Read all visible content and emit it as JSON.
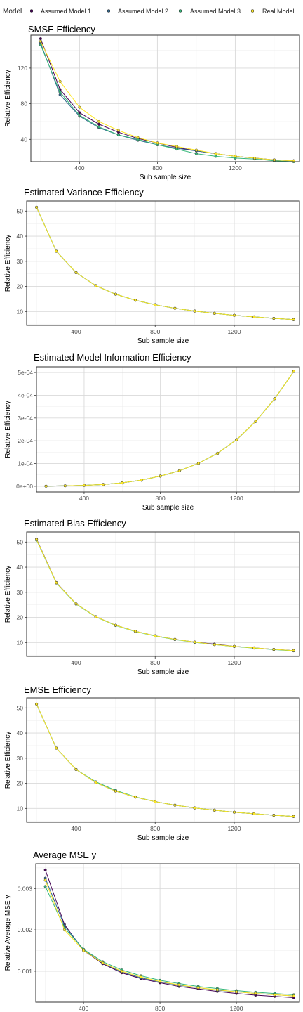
{
  "legend": {
    "title": "Model",
    "items": [
      {
        "name": "Assumed Model 1",
        "color": "#440154"
      },
      {
        "name": "Assumed Model 2",
        "color": "#31688e"
      },
      {
        "name": "Assumed Model 3",
        "color": "#35b779"
      },
      {
        "name": "Real Model",
        "color": "#fde725"
      }
    ]
  },
  "chart_data": [
    {
      "type": "line",
      "title": "SMSE Efficiency",
      "xlabel": "Sub sample size",
      "ylabel": "Relative Efficiency",
      "xlim": [
        150,
        1530
      ],
      "ylim": [
        15,
        157
      ],
      "xticks": [
        400,
        800,
        1200
      ],
      "yticks": [
        40,
        80,
        120
      ],
      "ytick_labels": [
        "40",
        "80",
        "120"
      ],
      "grid": true,
      "x": [
        200,
        300,
        400,
        500,
        600,
        700,
        800,
        900,
        1000,
        1100,
        1200,
        1300,
        1400,
        1500
      ],
      "series": [
        {
          "name": "Assumed Model 1",
          "values": [
            153,
            96,
            70,
            57,
            48,
            41,
            36,
            31,
            27,
            24,
            21,
            19,
            17,
            16
          ]
        },
        {
          "name": "Assumed Model 2",
          "values": [
            148,
            90,
            66,
            53,
            45,
            39,
            34,
            30,
            27,
            24,
            21,
            19,
            17,
            16
          ]
        },
        {
          "name": "Assumed Model 3",
          "values": [
            146,
            93,
            67,
            54,
            45,
            40,
            34,
            29,
            24,
            21,
            19,
            18,
            16,
            15
          ]
        },
        {
          "name": "Real Model",
          "values": [
            150,
            105,
            76,
            60,
            50,
            42,
            36,
            32,
            28,
            24,
            21,
            19,
            17,
            16
          ]
        }
      ]
    },
    {
      "type": "line",
      "title": "Estimated Variance Efficiency",
      "xlabel": "Sub sample size",
      "ylabel": "Relative Efficiency",
      "xlim": [
        150,
        1530
      ],
      "ylim": [
        4.5,
        54
      ],
      "xticks": [
        400,
        800,
        1200
      ],
      "yticks": [
        10,
        20,
        30,
        40,
        50
      ],
      "ytick_labels": [
        "10",
        "20",
        "30",
        "40",
        "50"
      ],
      "grid": true,
      "x": [
        200,
        300,
        400,
        500,
        600,
        700,
        800,
        900,
        1000,
        1100,
        1200,
        1300,
        1400,
        1500
      ],
      "series": [
        {
          "name": "Assumed Model 1",
          "values": [
            51.5,
            34.0,
            25.5,
            20.3,
            16.9,
            14.5,
            12.7,
            11.3,
            10.2,
            9.3,
            8.5,
            7.9,
            7.3,
            6.8
          ]
        },
        {
          "name": "Assumed Model 2",
          "values": [
            51.5,
            34.0,
            25.5,
            20.3,
            16.9,
            14.5,
            12.7,
            11.3,
            10.2,
            9.3,
            8.5,
            7.9,
            7.3,
            6.8
          ]
        },
        {
          "name": "Assumed Model 3",
          "values": [
            51.5,
            34.0,
            25.5,
            20.3,
            16.9,
            14.5,
            12.7,
            11.3,
            10.2,
            9.3,
            8.5,
            7.9,
            7.3,
            6.8
          ]
        },
        {
          "name": "Real Model",
          "values": [
            51.5,
            34.0,
            25.5,
            20.3,
            16.9,
            14.5,
            12.7,
            11.3,
            10.2,
            9.3,
            8.5,
            7.9,
            7.3,
            6.8
          ]
        }
      ]
    },
    {
      "type": "line",
      "title": "Estimated Model Information Efficiency",
      "xlabel": "Sub sample size",
      "ylabel": "Relative Efficiency",
      "xlim": [
        150,
        1530
      ],
      "ylim": [
        -2.5e-05,
        0.000525
      ],
      "xticks": [
        400,
        800,
        1200
      ],
      "yticks": [
        0,
        0.0001,
        0.0002,
        0.0003,
        0.0004,
        0.0005
      ],
      "ytick_labels": [
        "0e+00",
        "1e-04",
        "2e-04",
        "3e-04",
        "4e-04",
        "5e-04"
      ],
      "grid": true,
      "x": [
        200,
        300,
        400,
        500,
        600,
        700,
        800,
        900,
        1000,
        1100,
        1200,
        1300,
        1400,
        1500
      ],
      "series": [
        {
          "name": "Assumed Model 1",
          "values": [
            5e-07,
            2e-06,
            4e-06,
            8e-06,
            1.5e-05,
            2.7e-05,
            4.5e-05,
            6.8e-05,
            0.000101,
            0.000145,
            0.000205,
            0.000285,
            0.000385,
            0.000505
          ]
        },
        {
          "name": "Assumed Model 2",
          "values": [
            5e-07,
            2e-06,
            4e-06,
            8e-06,
            1.5e-05,
            2.7e-05,
            4.5e-05,
            6.8e-05,
            0.000101,
            0.000145,
            0.000205,
            0.000285,
            0.000385,
            0.000505
          ]
        },
        {
          "name": "Assumed Model 3",
          "values": [
            5e-07,
            2e-06,
            4e-06,
            8e-06,
            1.5e-05,
            2.7e-05,
            4.5e-05,
            6.8e-05,
            0.000101,
            0.000145,
            0.000205,
            0.000285,
            0.000385,
            0.000505
          ]
        },
        {
          "name": "Real Model",
          "values": [
            5e-07,
            2e-06,
            4e-06,
            8e-06,
            1.5e-05,
            2.7e-05,
            4.5e-05,
            6.8e-05,
            0.000101,
            0.000145,
            0.000205,
            0.000285,
            0.000385,
            0.000505
          ]
        }
      ]
    },
    {
      "type": "line",
      "title": "Estimated Bias Efficiency",
      "xlabel": "Sub sample size",
      "ylabel": "Relative Efficiency",
      "xlim": [
        150,
        1530
      ],
      "ylim": [
        4.5,
        54
      ],
      "xticks": [
        400,
        800,
        1200
      ],
      "yticks": [
        10,
        20,
        30,
        40,
        50
      ],
      "ytick_labels": [
        "10",
        "20",
        "30",
        "40",
        "50"
      ],
      "grid": true,
      "x": [
        200,
        300,
        400,
        500,
        600,
        700,
        800,
        900,
        1000,
        1100,
        1200,
        1300,
        1400,
        1500
      ],
      "series": [
        {
          "name": "Assumed Model 1",
          "values": [
            51.2,
            33.9,
            25.4,
            20.3,
            16.9,
            14.5,
            12.7,
            11.3,
            10.2,
            9.4,
            8.5,
            7.9,
            7.3,
            6.8
          ]
        },
        {
          "name": "Assumed Model 2",
          "values": [
            51.0,
            33.8,
            25.4,
            20.3,
            16.9,
            14.5,
            12.7,
            11.3,
            10.2,
            9.2,
            8.5,
            7.9,
            7.3,
            6.8
          ]
        },
        {
          "name": "Assumed Model 3",
          "values": [
            50.8,
            33.7,
            25.3,
            20.2,
            16.8,
            14.4,
            12.6,
            11.2,
            10.1,
            9.2,
            8.4,
            7.8,
            7.2,
            6.7
          ]
        },
        {
          "name": "Real Model",
          "values": [
            51.0,
            33.8,
            25.4,
            20.3,
            16.9,
            14.5,
            12.7,
            11.3,
            10.2,
            9.2,
            8.5,
            7.9,
            7.3,
            6.8
          ]
        }
      ]
    },
    {
      "type": "line",
      "title": "EMSE Efficiency",
      "xlabel": "Sub sample size",
      "ylabel": "Relative Efficiency",
      "xlim": [
        150,
        1530
      ],
      "ylim": [
        4.5,
        54
      ],
      "xticks": [
        400,
        800,
        1200
      ],
      "yticks": [
        10,
        20,
        30,
        40,
        50
      ],
      "ytick_labels": [
        "10",
        "20",
        "30",
        "40",
        "50"
      ],
      "grid": true,
      "x": [
        200,
        300,
        400,
        500,
        600,
        700,
        800,
        900,
        1000,
        1100,
        1200,
        1300,
        1400,
        1500
      ],
      "series": [
        {
          "name": "Assumed Model 1",
          "values": [
            51.5,
            34.0,
            25.5,
            20.3,
            16.9,
            14.5,
            12.7,
            11.3,
            10.2,
            9.3,
            8.5,
            7.9,
            7.3,
            6.8
          ]
        },
        {
          "name": "Assumed Model 2",
          "values": [
            51.5,
            34.0,
            25.5,
            20.3,
            16.9,
            14.5,
            12.7,
            11.3,
            10.2,
            9.3,
            8.5,
            7.9,
            7.3,
            6.8
          ]
        },
        {
          "name": "Assumed Model 3",
          "values": [
            51.5,
            34.0,
            25.5,
            20.6,
            17.2,
            14.6,
            12.7,
            11.3,
            10.2,
            9.3,
            8.5,
            7.9,
            7.3,
            6.8
          ]
        },
        {
          "name": "Real Model",
          "values": [
            51.5,
            34.0,
            25.5,
            20.3,
            16.9,
            14.5,
            12.7,
            11.3,
            10.2,
            9.3,
            8.5,
            7.9,
            7.3,
            6.8
          ]
        }
      ]
    },
    {
      "type": "line",
      "title": "Average MSE y",
      "xlabel": "Sub sample size",
      "ylabel": "Relative Average MSE y",
      "xlim": [
        150,
        1530
      ],
      "ylim": [
        0.00025,
        0.0036
      ],
      "xticks": [
        400,
        800,
        1200
      ],
      "yticks": [
        0.001,
        0.002,
        0.003
      ],
      "ytick_labels": [
        "0.001",
        "0.002",
        "0.003"
      ],
      "grid": true,
      "x": [
        200,
        300,
        400,
        500,
        600,
        700,
        800,
        900,
        1000,
        1100,
        1200,
        1300,
        1400,
        1500
      ],
      "series": [
        {
          "name": "Assumed Model 1",
          "values": [
            0.00345,
            0.00213,
            0.0015,
            0.00118,
            0.00096,
            0.00082,
            0.00072,
            0.00063,
            0.00057,
            0.00051,
            0.00046,
            0.00042,
            0.00039,
            0.00036
          ]
        },
        {
          "name": "Assumed Model 2",
          "values": [
            0.00325,
            0.0021,
            0.00152,
            0.0012,
            0.00098,
            0.00084,
            0.00074,
            0.00066,
            0.0006,
            0.00054,
            0.0005,
            0.00046,
            0.00043,
            0.0004
          ]
        },
        {
          "name": "Assumed Model 3",
          "values": [
            0.00305,
            0.00205,
            0.00153,
            0.00123,
            0.00103,
            0.00089,
            0.00078,
            0.0007,
            0.00063,
            0.00058,
            0.00053,
            0.00049,
            0.00046,
            0.00043
          ]
        },
        {
          "name": "Real Model",
          "values": [
            0.0032,
            0.002,
            0.0015,
            0.0012,
            0.001,
            0.00086,
            0.00075,
            0.00067,
            0.0006,
            0.00055,
            0.0005,
            0.00046,
            0.00043,
            0.0004
          ]
        }
      ]
    }
  ]
}
